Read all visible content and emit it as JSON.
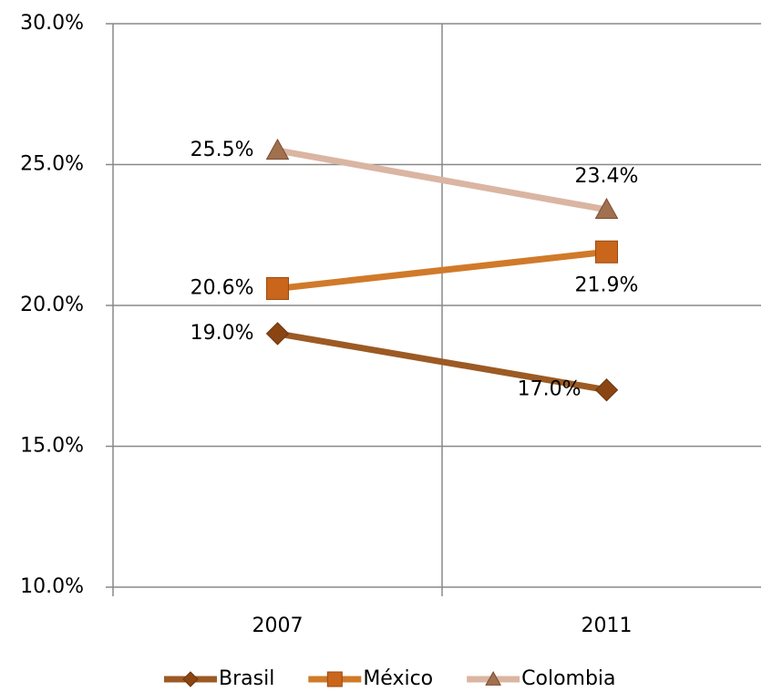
{
  "chart_data": {
    "type": "line",
    "categories": [
      "2007",
      "2011"
    ],
    "series": [
      {
        "name": "Brasil",
        "color": "#9c5a24",
        "marker": "diamond",
        "marker_color": "#8a4513",
        "values": [
          19.0,
          17.0
        ],
        "value_labels": [
          "19.0%",
          "17.0%"
        ]
      },
      {
        "name": "México",
        "color": "#d07a2a",
        "marker": "square",
        "marker_color": "#c9661c",
        "values": [
          20.6,
          21.9
        ],
        "value_labels": [
          "20.6%",
          "21.9%"
        ],
        "value_label_colors": [
          "#000000",
          "#ff0000"
        ]
      },
      {
        "name": "Colombia",
        "color": "#dab5a2",
        "marker": "triangle",
        "marker_color": "#a0704f",
        "values": [
          25.5,
          23.4
        ],
        "value_labels": [
          "25.5%",
          "23.4%"
        ]
      }
    ],
    "ylim": [
      10,
      30
    ],
    "yticks": [
      {
        "value": 10,
        "label": "10.0%"
      },
      {
        "value": 15,
        "label": "15.0%"
      },
      {
        "value": 20,
        "label": "20.0%"
      },
      {
        "value": 25,
        "label": "25.0%"
      },
      {
        "value": 30,
        "label": "30.0%"
      }
    ],
    "grid": true,
    "legend": "bottom"
  }
}
